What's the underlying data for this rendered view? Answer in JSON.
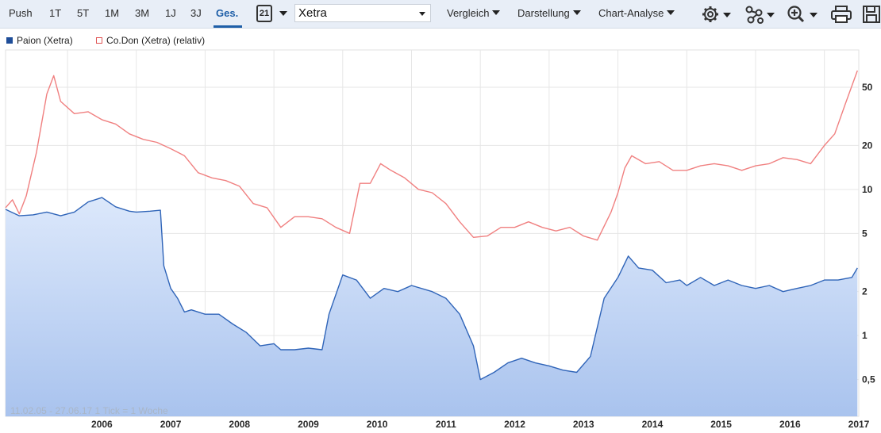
{
  "toolbar": {
    "ranges": [
      "Push",
      "1T",
      "5T",
      "1M",
      "3M",
      "1J",
      "3J",
      "Ges."
    ],
    "active_range": "Ges.",
    "calendar_label": "21",
    "exchange_value": "Xetra",
    "menus": [
      "Vergleich",
      "Darstellung",
      "Chart-Analyse"
    ],
    "icons": [
      "settings-icon",
      "indicators-icon",
      "zoom-icon",
      "print-icon",
      "save-icon"
    ]
  },
  "legend": [
    {
      "label": "Paion (Xetra)",
      "color": "#1f4e99"
    },
    {
      "label": "Co.Don (Xetra) (relativ)",
      "color": "#e05555"
    }
  ],
  "footnote": "11.02.05 - 27.06.17   1 Tick = 1 Woche",
  "chart_data": {
    "type": "line",
    "y_scale": "log",
    "ylim": [
      0.28,
      90
    ],
    "xlim": [
      2005.1,
      2017.5
    ],
    "x_ticks": [
      "2006",
      "2007",
      "2008",
      "2009",
      "2010",
      "2011",
      "2012",
      "2013",
      "2014",
      "2015",
      "2016",
      "2017"
    ],
    "y_ticks": [
      "0,5",
      "1",
      "2",
      "5",
      "10",
      "20",
      "50"
    ],
    "y_tick_values": [
      0.5,
      1,
      2,
      5,
      10,
      20,
      50
    ],
    "grid": true,
    "series": [
      {
        "name": "Paion (Xetra)",
        "color": "#2f64b8",
        "fill": "area",
        "points": [
          [
            2005.1,
            7.3
          ],
          [
            2005.3,
            6.6
          ],
          [
            2005.5,
            6.7
          ],
          [
            2005.7,
            7.0
          ],
          [
            2005.9,
            6.6
          ],
          [
            2006.1,
            7.0
          ],
          [
            2006.3,
            8.2
          ],
          [
            2006.5,
            8.8
          ],
          [
            2006.7,
            7.6
          ],
          [
            2006.9,
            7.1
          ],
          [
            2007.0,
            7.0
          ],
          [
            2007.2,
            7.1
          ],
          [
            2007.35,
            7.2
          ],
          [
            2007.4,
            3.0
          ],
          [
            2007.5,
            2.1
          ],
          [
            2007.6,
            1.8
          ],
          [
            2007.7,
            1.45
          ],
          [
            2007.8,
            1.5
          ],
          [
            2008.0,
            1.4
          ],
          [
            2008.2,
            1.4
          ],
          [
            2008.4,
            1.2
          ],
          [
            2008.6,
            1.05
          ],
          [
            2008.8,
            0.85
          ],
          [
            2009.0,
            0.88
          ],
          [
            2009.1,
            0.8
          ],
          [
            2009.3,
            0.8
          ],
          [
            2009.5,
            0.82
          ],
          [
            2009.7,
            0.8
          ],
          [
            2009.8,
            1.4
          ],
          [
            2010.0,
            2.6
          ],
          [
            2010.2,
            2.4
          ],
          [
            2010.4,
            1.8
          ],
          [
            2010.6,
            2.1
          ],
          [
            2010.8,
            2.0
          ],
          [
            2011.0,
            2.2
          ],
          [
            2011.3,
            2.0
          ],
          [
            2011.5,
            1.8
          ],
          [
            2011.7,
            1.4
          ],
          [
            2011.9,
            0.85
          ],
          [
            2012.0,
            0.5
          ],
          [
            2012.2,
            0.56
          ],
          [
            2012.4,
            0.65
          ],
          [
            2012.6,
            0.7
          ],
          [
            2012.8,
            0.65
          ],
          [
            2013.0,
            0.62
          ],
          [
            2013.2,
            0.58
          ],
          [
            2013.4,
            0.56
          ],
          [
            2013.6,
            0.72
          ],
          [
            2013.8,
            1.8
          ],
          [
            2014.0,
            2.5
          ],
          [
            2014.15,
            3.5
          ],
          [
            2014.3,
            2.9
          ],
          [
            2014.5,
            2.8
          ],
          [
            2014.7,
            2.3
          ],
          [
            2014.9,
            2.4
          ],
          [
            2015.0,
            2.2
          ],
          [
            2015.2,
            2.5
          ],
          [
            2015.4,
            2.2
          ],
          [
            2015.6,
            2.4
          ],
          [
            2015.8,
            2.2
          ],
          [
            2016.0,
            2.1
          ],
          [
            2016.2,
            2.2
          ],
          [
            2016.4,
            2.0
          ],
          [
            2016.6,
            2.1
          ],
          [
            2016.8,
            2.2
          ],
          [
            2017.0,
            2.4
          ],
          [
            2017.2,
            2.4
          ],
          [
            2017.4,
            2.5
          ],
          [
            2017.48,
            2.9
          ]
        ]
      },
      {
        "name": "Co.Don (Xetra) (relativ)",
        "color": "#f08080",
        "fill": "none",
        "points": [
          [
            2005.1,
            7.5
          ],
          [
            2005.2,
            8.5
          ],
          [
            2005.3,
            6.8
          ],
          [
            2005.4,
            9.0
          ],
          [
            2005.55,
            18.0
          ],
          [
            2005.7,
            45.0
          ],
          [
            2005.8,
            60.0
          ],
          [
            2005.9,
            40.0
          ],
          [
            2006.1,
            33.0
          ],
          [
            2006.3,
            34.0
          ],
          [
            2006.5,
            30.0
          ],
          [
            2006.7,
            28.0
          ],
          [
            2006.9,
            24.0
          ],
          [
            2007.1,
            22.0
          ],
          [
            2007.3,
            21.0
          ],
          [
            2007.5,
            19.0
          ],
          [
            2007.7,
            17.0
          ],
          [
            2007.9,
            13.0
          ],
          [
            2008.1,
            12.0
          ],
          [
            2008.3,
            11.5
          ],
          [
            2008.5,
            10.5
          ],
          [
            2008.7,
            8.0
          ],
          [
            2008.9,
            7.5
          ],
          [
            2009.1,
            5.5
          ],
          [
            2009.3,
            6.5
          ],
          [
            2009.5,
            6.5
          ],
          [
            2009.7,
            6.3
          ],
          [
            2009.9,
            5.5
          ],
          [
            2010.1,
            5.0
          ],
          [
            2010.25,
            11.0
          ],
          [
            2010.4,
            11.0
          ],
          [
            2010.55,
            15.0
          ],
          [
            2010.7,
            13.5
          ],
          [
            2010.9,
            12.0
          ],
          [
            2011.1,
            10.0
          ],
          [
            2011.3,
            9.5
          ],
          [
            2011.5,
            8.0
          ],
          [
            2011.7,
            6.0
          ],
          [
            2011.9,
            4.7
          ],
          [
            2012.1,
            4.8
          ],
          [
            2012.3,
            5.5
          ],
          [
            2012.5,
            5.5
          ],
          [
            2012.7,
            6.0
          ],
          [
            2012.9,
            5.5
          ],
          [
            2013.1,
            5.2
          ],
          [
            2013.3,
            5.5
          ],
          [
            2013.5,
            4.8
          ],
          [
            2013.7,
            4.5
          ],
          [
            2013.9,
            7.0
          ],
          [
            2014.0,
            9.5
          ],
          [
            2014.1,
            14.0
          ],
          [
            2014.2,
            17.0
          ],
          [
            2014.4,
            15.0
          ],
          [
            2014.6,
            15.5
          ],
          [
            2014.8,
            13.5
          ],
          [
            2015.0,
            13.5
          ],
          [
            2015.2,
            14.5
          ],
          [
            2015.4,
            15.0
          ],
          [
            2015.6,
            14.5
          ],
          [
            2015.8,
            13.5
          ],
          [
            2016.0,
            14.5
          ],
          [
            2016.2,
            15.0
          ],
          [
            2016.4,
            16.5
          ],
          [
            2016.6,
            16.0
          ],
          [
            2016.8,
            15.0
          ],
          [
            2017.0,
            20.0
          ],
          [
            2017.15,
            24.0
          ],
          [
            2017.3,
            38.0
          ],
          [
            2017.48,
            65.0
          ]
        ]
      }
    ]
  }
}
